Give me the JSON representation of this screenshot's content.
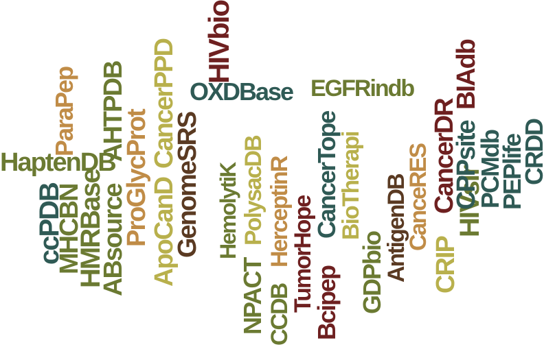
{
  "palette": {
    "olive": "#6b7a32",
    "teal": "#2f5a55",
    "tan": "#c08c47",
    "khaki": "#b8b04c",
    "brown": "#5a3a22",
    "maroon": "#6e2020",
    "olivegreen": "#5e6f2d"
  },
  "words": [
    {
      "id": "haptendb",
      "text": "HaptenDB",
      "color": "olive"
    },
    {
      "id": "oxdbase",
      "text": "OXDBase",
      "color": "teal"
    },
    {
      "id": "egfrindb",
      "text": "EGFRindb",
      "color": "olive"
    },
    {
      "id": "hivbio",
      "text": "HIVbio",
      "color": "maroon"
    },
    {
      "id": "parapep",
      "text": "ParaPep",
      "color": "tan"
    },
    {
      "id": "ccpdb",
      "text": "ccPDB",
      "color": "teal"
    },
    {
      "id": "mhcbn",
      "text": "MHCBN",
      "color": "olive"
    },
    {
      "id": "hmrbase",
      "text": "HMRBase",
      "color": "olive"
    },
    {
      "id": "absource",
      "text": "ABsource",
      "color": "olive"
    },
    {
      "id": "ahtpdb",
      "text": "AHTPDB",
      "color": "olive"
    },
    {
      "id": "proglycprot",
      "text": "ProGlycProt",
      "color": "tan"
    },
    {
      "id": "apocand",
      "text": "ApoCanD",
      "color": "khaki"
    },
    {
      "id": "cancerppd",
      "text": "CancerPPD",
      "color": "khaki"
    },
    {
      "id": "genomesrs",
      "text": "GenomeSRS",
      "color": "brown"
    },
    {
      "id": "hemolytik",
      "text": "HemolytiK",
      "color": "olive"
    },
    {
      "id": "npact",
      "text": "NPACT",
      "color": "olive"
    },
    {
      "id": "polysacdb",
      "text": "PolysacDB",
      "color": "khaki"
    },
    {
      "id": "ccdb",
      "text": "CCDB",
      "color": "olive"
    },
    {
      "id": "herceptinr",
      "text": "HerceptinR",
      "color": "tan"
    },
    {
      "id": "tumorhope",
      "text": "TumorHope",
      "color": "maroon"
    },
    {
      "id": "bcipep",
      "text": "Bcipep",
      "color": "maroon"
    },
    {
      "id": "cancertope",
      "text": "CancerTope",
      "color": "teal"
    },
    {
      "id": "biotherapi",
      "text": "BioTherapi",
      "color": "khaki"
    },
    {
      "id": "gdpbio",
      "text": "GDPbio",
      "color": "olive"
    },
    {
      "id": "antigendb",
      "text": "AntigenDB",
      "color": "brown"
    },
    {
      "id": "canceres",
      "text": "CanceRES",
      "color": "tan"
    },
    {
      "id": "crip",
      "text": "CRIP",
      "color": "khaki"
    },
    {
      "id": "cancerdr",
      "text": "CancerDR",
      "color": "maroon"
    },
    {
      "id": "hivsir",
      "text": "HIVsir",
      "color": "olive"
    },
    {
      "id": "blatdb",
      "text": "BIAdb",
      "color": "maroon"
    },
    {
      "id": "cppsite",
      "text": "CPPsite",
      "color": "teal"
    },
    {
      "id": "pcmdb",
      "text": "PCMdb",
      "color": "teal"
    },
    {
      "id": "peplife",
      "text": "PEPlife",
      "color": "teal"
    },
    {
      "id": "crdd",
      "text": "CRDD",
      "color": "teal"
    }
  ]
}
